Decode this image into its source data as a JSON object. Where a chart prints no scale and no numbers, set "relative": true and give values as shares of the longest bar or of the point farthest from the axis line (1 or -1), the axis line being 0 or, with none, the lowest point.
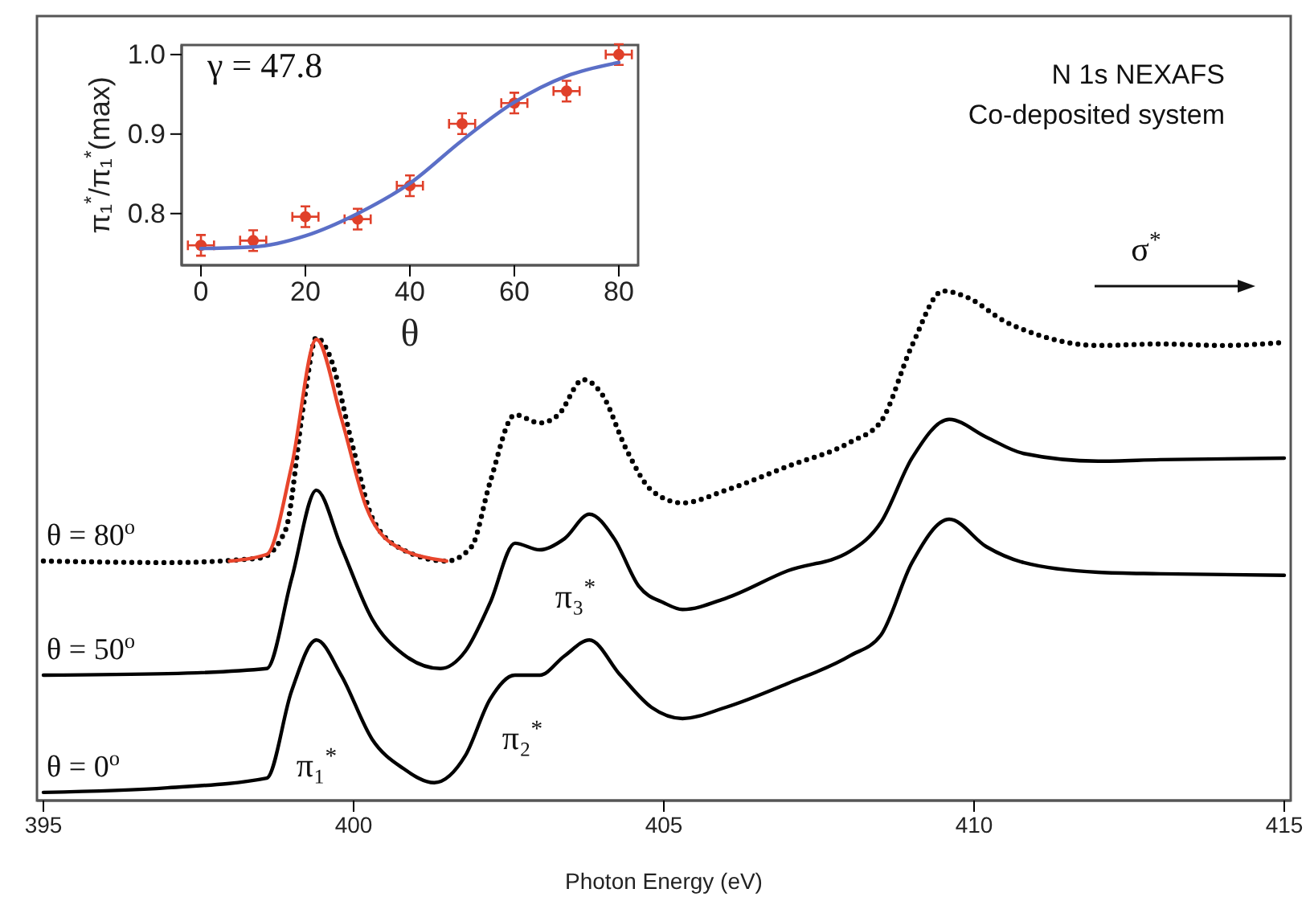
{
  "chart_data": [
    {
      "type": "line",
      "relative": true,
      "xlabel": "Photon Energy (eV)",
      "xlim": [
        395,
        415
      ],
      "xticks": [
        395,
        400,
        405,
        410,
        415
      ],
      "annotations": [
        "N 1s NEXAFS",
        "Co-deposited system",
        "π₁$^{*}$",
        "π₂$^{*}$",
        "π₃$^{*}$",
        "σ$^{*}$"
      ],
      "series": [
        {
          "name": "θ = 80$^{o}$",
          "color": "#000000",
          "line_style": "dotted",
          "x": [
            395,
            397,
            398.5,
            398.9,
            399.2,
            399.4,
            399.6,
            400,
            400.3,
            400.8,
            401.5,
            401.9,
            402.2,
            402.6,
            403,
            403.3,
            403.7,
            404,
            404.4,
            404.8,
            405.3,
            406,
            407,
            408,
            408.5,
            409,
            409.5,
            409.9,
            410.5,
            411,
            412,
            413,
            414,
            415
          ],
          "values": [
            0.47,
            0.467,
            0.476,
            0.53,
            0.782,
            0.909,
            0.877,
            0.688,
            0.555,
            0.492,
            0.47,
            0.498,
            0.625,
            0.757,
            0.741,
            0.757,
            0.826,
            0.798,
            0.688,
            0.609,
            0.584,
            0.609,
            0.656,
            0.703,
            0.744,
            0.893,
            1.0,
            0.987,
            0.94,
            0.915,
            0.893,
            0.896,
            0.893,
            0.899
          ]
        },
        {
          "color": "#e8452c",
          "x": [
            398,
            398.6,
            399,
            399.4,
            399.8,
            400.2,
            400.7,
            401.5
          ],
          "values": [
            0.47,
            0.483,
            0.656,
            0.905,
            0.751,
            0.577,
            0.498,
            0.47
          ]
        },
        {
          "name": "θ = 50$^{o}$",
          "color": "#000000",
          "x": [
            395,
            397,
            398.6,
            399,
            399.4,
            399.8,
            400.3,
            400.8,
            401.4,
            401.8,
            402.2,
            402.6,
            403,
            403.4,
            403.8,
            404.2,
            404.6,
            405,
            405.3,
            406,
            407,
            408,
            408.5,
            409,
            409.6,
            410.2,
            410.8,
            412,
            413,
            415
          ],
          "values": [
            0.246,
            0.249,
            0.259,
            0.435,
            0.609,
            0.498,
            0.356,
            0.287,
            0.259,
            0.293,
            0.388,
            0.505,
            0.492,
            0.514,
            0.562,
            0.514,
            0.42,
            0.388,
            0.375,
            0.397,
            0.451,
            0.489,
            0.546,
            0.672,
            0.748,
            0.713,
            0.681,
            0.666,
            0.669,
            0.672
          ]
        },
        {
          "name": "θ = 0$^{o}$",
          "color": "#000000",
          "x": [
            395,
            397,
            398.6,
            399,
            399.4,
            399.8,
            400.3,
            400.8,
            401.3,
            401.8,
            402.2,
            402.6,
            403,
            403.4,
            403.8,
            404.3,
            404.8,
            405.3,
            406,
            407,
            408,
            408.5,
            409,
            409.6,
            410.2,
            410.8,
            412,
            413,
            415
          ],
          "values": [
            0.016,
            0.025,
            0.044,
            0.215,
            0.315,
            0.246,
            0.12,
            0.063,
            0.035,
            0.088,
            0.199,
            0.246,
            0.246,
            0.284,
            0.315,
            0.246,
            0.183,
            0.161,
            0.183,
            0.23,
            0.284,
            0.325,
            0.467,
            0.552,
            0.498,
            0.467,
            0.448,
            0.445,
            0.442
          ]
        }
      ]
    },
    {
      "type": "scatter",
      "xlabel": "θ",
      "ylabel": "π₁$^{*}$/π₁$^{*}$(max)",
      "xlim": [
        -3.7,
        83.7
      ],
      "ylim": [
        0.735,
        1.012
      ],
      "xticks": [
        0,
        20,
        40,
        60,
        80
      ],
      "yticks": [
        0.8,
        0.9,
        {
          "value": 1,
          "label": "1.0"
        }
      ],
      "annotations": [
        "γ = 47.8"
      ],
      "series": [
        {
          "color": "#e0402a",
          "marker": "circle",
          "x": [
            0,
            10,
            20,
            30,
            40,
            50,
            60,
            70,
            80
          ],
          "values": [
            0.76,
            0.766,
            0.796,
            0.793,
            0.835,
            0.913,
            0.939,
            0.954,
            1.0
          ],
          "errors": [
            0.013,
            0.013,
            0.013,
            0.013,
            0.013,
            0.013,
            0.013,
            0.013,
            0.013
          ],
          "xerrors": [
            2.5,
            2.5,
            2.5,
            2.5,
            2.5,
            2.5,
            2.5,
            2.5,
            2.5
          ]
        },
        {
          "type": "line",
          "color": "#5b6fc7",
          "x": [
            0,
            10,
            20,
            30,
            40,
            50,
            60,
            70,
            80
          ],
          "values": [
            0.756,
            0.758,
            0.772,
            0.8,
            0.838,
            0.892,
            0.94,
            0.973,
            0.99
          ]
        }
      ]
    }
  ]
}
